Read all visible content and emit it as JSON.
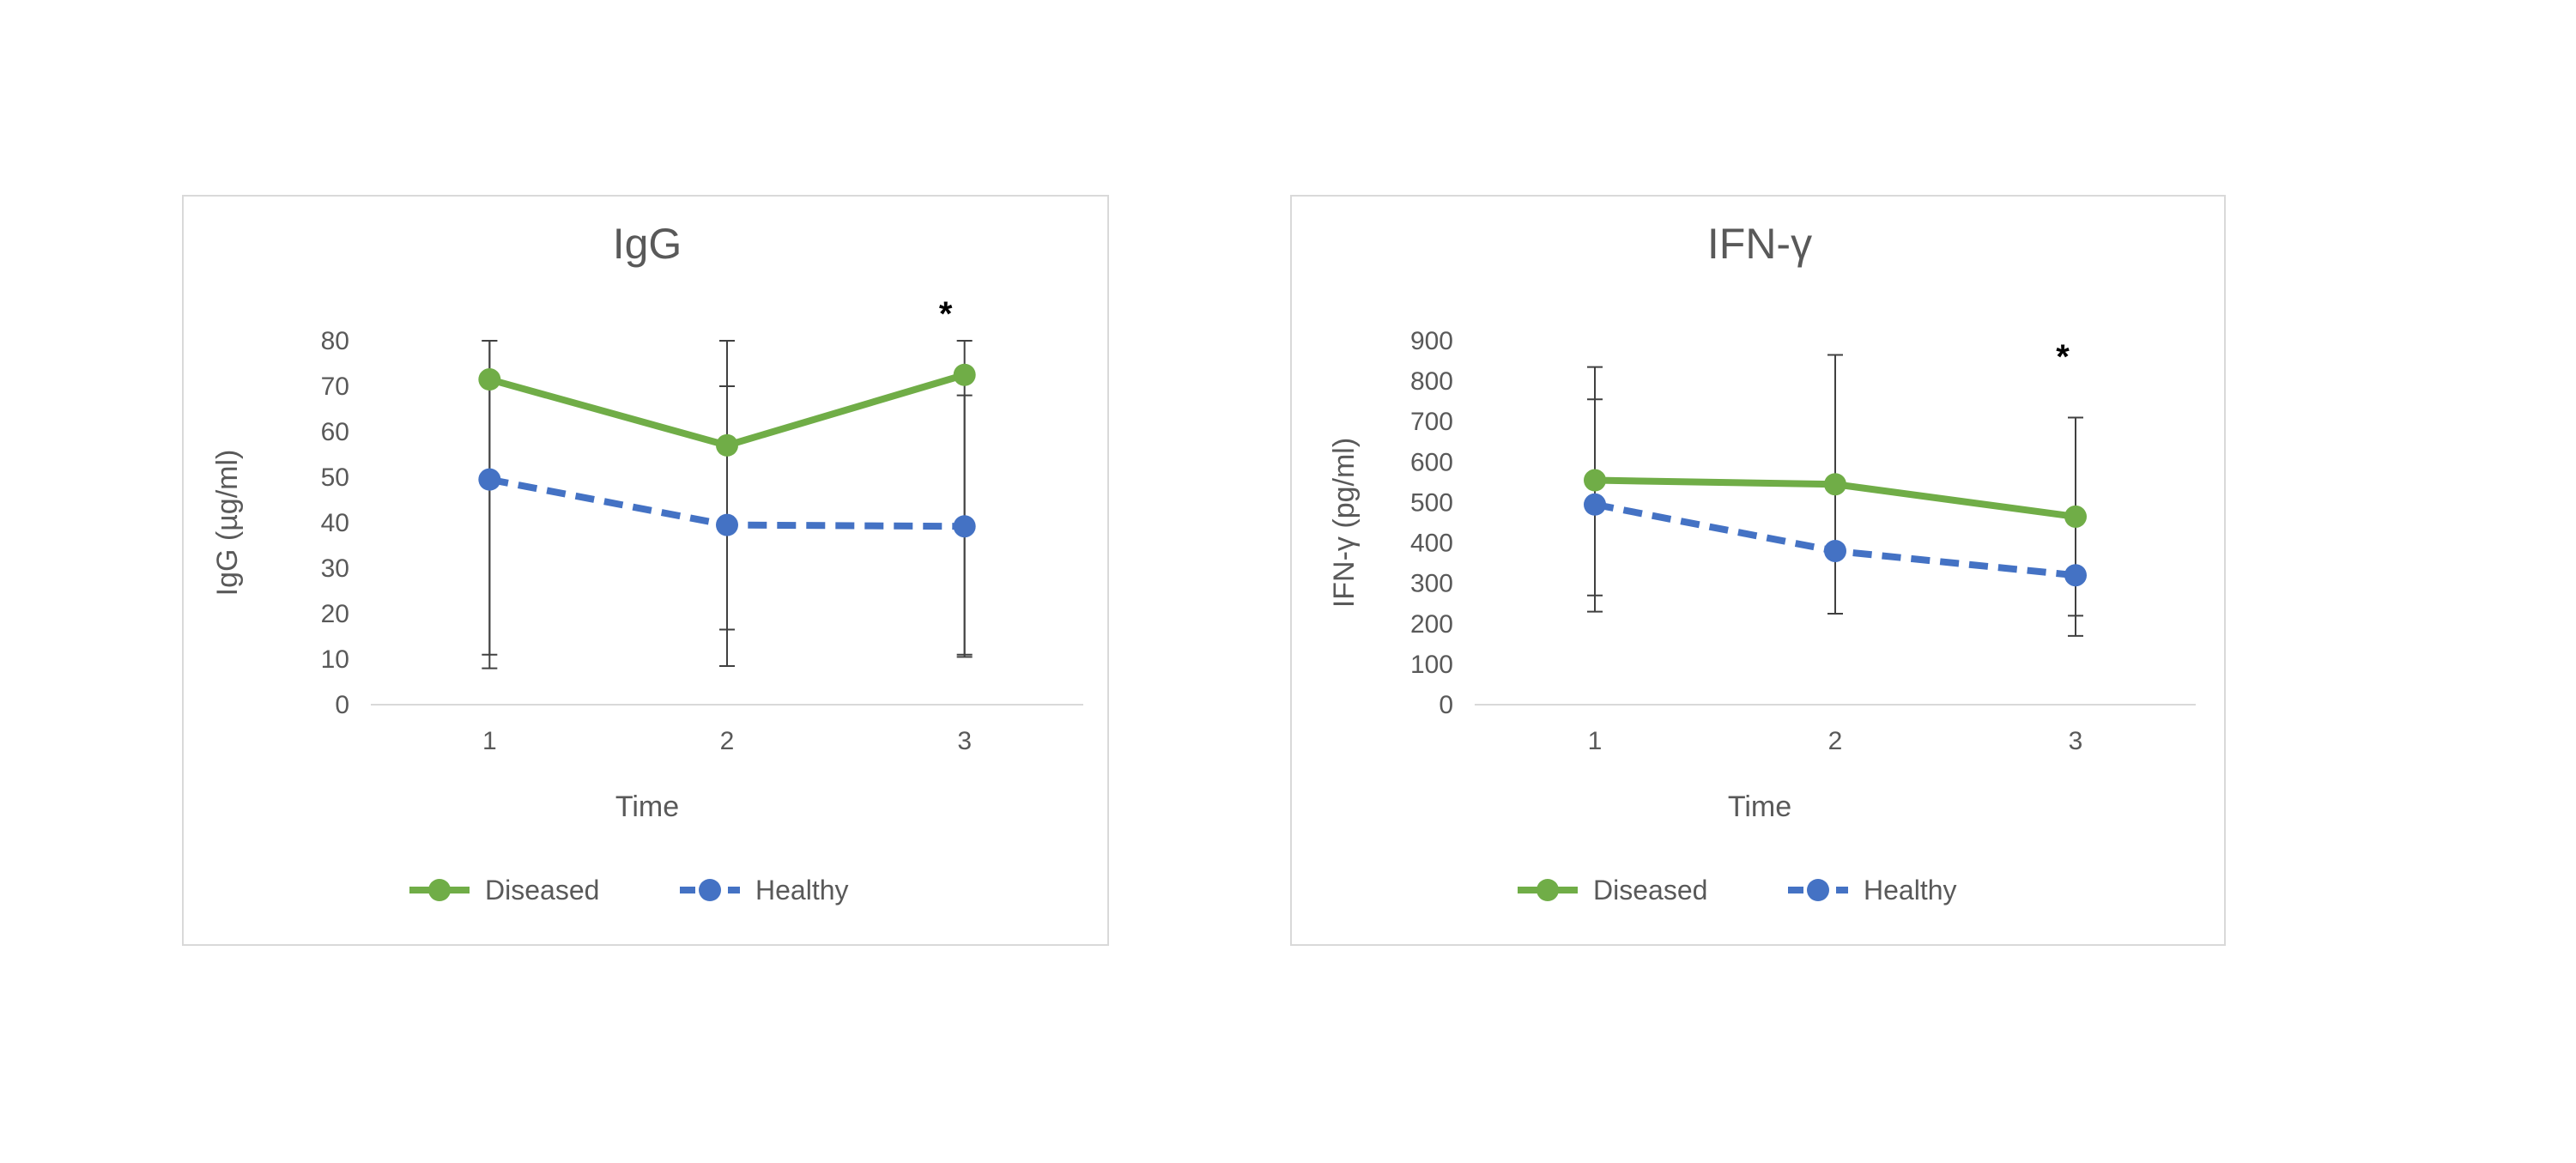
{
  "colors": {
    "diseased": "#70ad47",
    "healthy": "#4472c4",
    "axis": "#d9d9d9",
    "text": "#595959",
    "errorbar": "#404040"
  },
  "chart_data": [
    {
      "type": "line",
      "title": "IgG",
      "xlabel": "Time",
      "ylabel": "IgG (µg/ml)",
      "categories": [
        "1",
        "2",
        "3"
      ],
      "ylim": [
        0,
        80
      ],
      "yticks": [
        0,
        10,
        20,
        30,
        40,
        50,
        60,
        70,
        80
      ],
      "legend_position": "bottom",
      "annotations": [
        {
          "text": "*",
          "category": "3"
        }
      ],
      "series": [
        {
          "name": "Diseased",
          "values": [
            71.5,
            57,
            72.5
          ],
          "error": [
            [
              8,
              80
            ],
            [
              16.5,
              80
            ],
            [
              11,
              80
            ]
          ],
          "style": "solid"
        },
        {
          "name": "Healthy",
          "values": [
            49.5,
            39.5,
            39.2
          ],
          "error": [
            [
              11,
              80
            ],
            [
              8.5,
              70
            ],
            [
              10.5,
              68
            ]
          ],
          "style": "dashed"
        }
      ]
    },
    {
      "type": "line",
      "title": "IFN-γ",
      "xlabel": "Time",
      "ylabel": "IFN-γ (pg/ml)",
      "categories": [
        "1",
        "2",
        "3"
      ],
      "ylim": [
        0,
        900
      ],
      "yticks": [
        0,
        100,
        200,
        300,
        400,
        500,
        600,
        700,
        800,
        900
      ],
      "legend_position": "bottom",
      "annotations": [
        {
          "text": "*",
          "category": "3"
        }
      ],
      "series": [
        {
          "name": "Diseased",
          "values": [
            555,
            545,
            465
          ],
          "error": [
            [
              270,
              835
            ],
            [
              225,
              865
            ],
            [
              220,
              710
            ]
          ],
          "style": "solid"
        },
        {
          "name": "Healthy",
          "values": [
            495,
            380,
            320
          ],
          "error": [
            [
              230,
              755
            ],
            [
              225,
              865
            ],
            [
              170,
              710
            ]
          ],
          "style": "dashed"
        }
      ]
    }
  ]
}
